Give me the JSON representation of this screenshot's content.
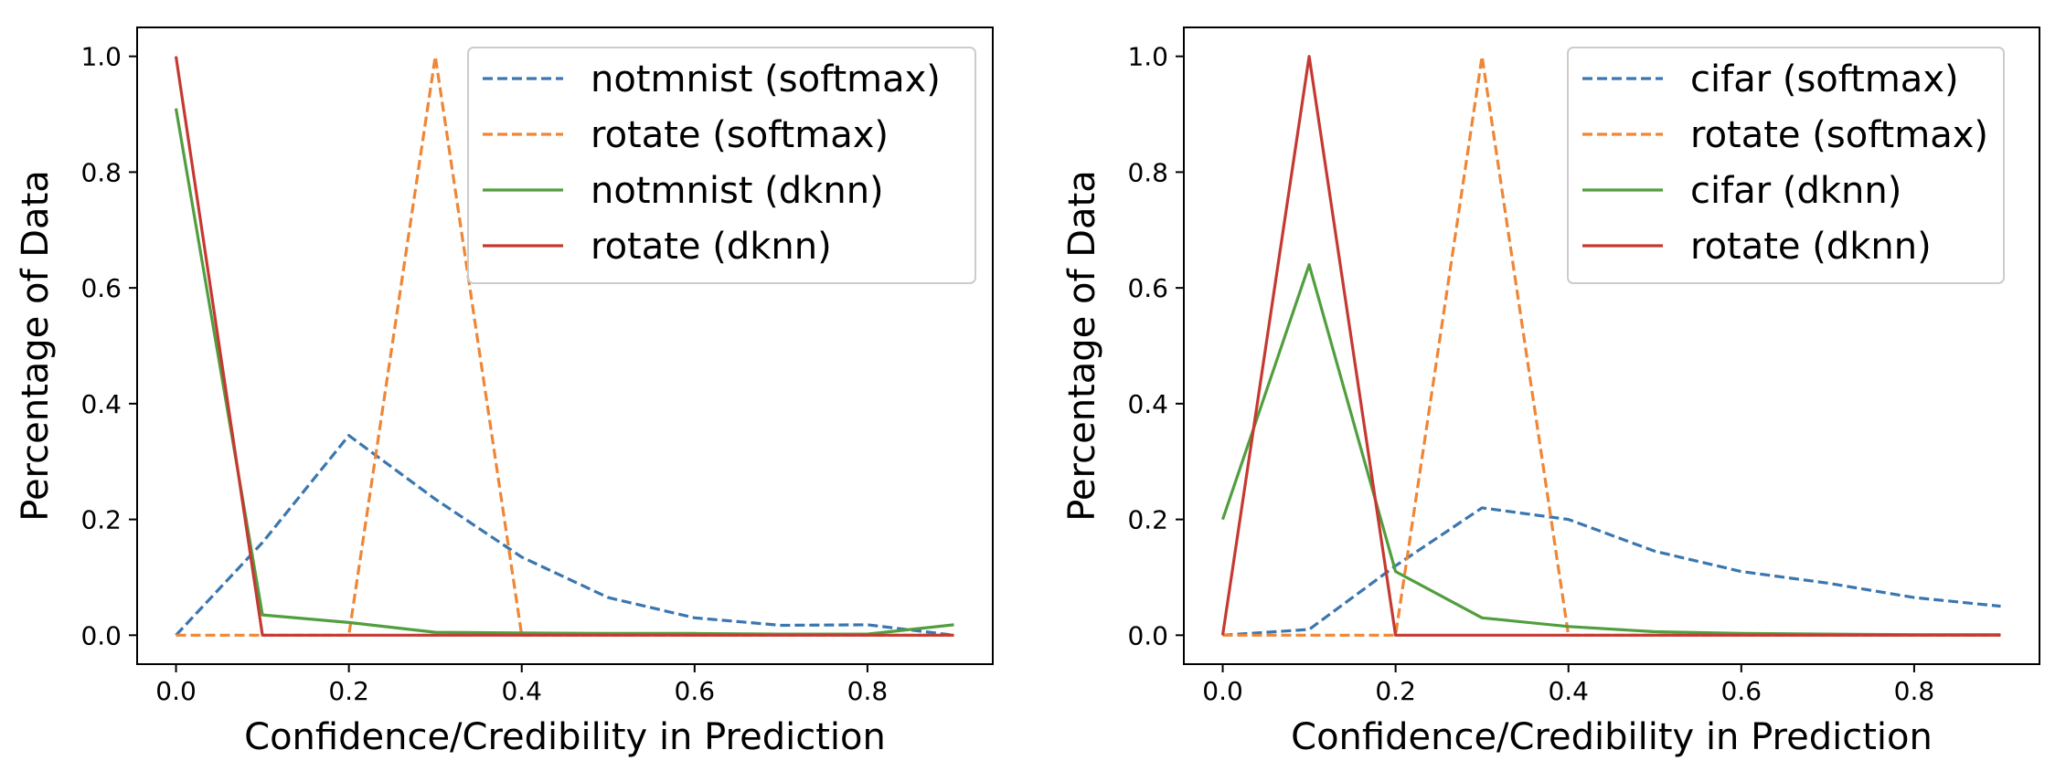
{
  "colors": {
    "blue": "#3a76af",
    "orange": "#ef8636",
    "green": "#519e3e",
    "red": "#c53932"
  },
  "chart_data": [
    {
      "type": "line",
      "title": "",
      "xlabel": "Confidence/Credibility in Prediction",
      "ylabel": "Percentage of Data",
      "xlim": [
        -0.045,
        0.945
      ],
      "ylim": [
        -0.05,
        1.05
      ],
      "xticks": [
        "0.0",
        "0.2",
        "0.4",
        "0.6",
        "0.8"
      ],
      "yticks": [
        "0.0",
        "0.2",
        "0.4",
        "0.6",
        "0.8",
        "1.0"
      ],
      "grid": false,
      "legend_position": "top-right",
      "x": [
        0.0,
        0.1,
        0.2,
        0.3,
        0.4,
        0.5,
        0.6,
        0.7,
        0.8,
        0.9
      ],
      "series": [
        {
          "name": "notmnist (softmax)",
          "color": "#3a76af",
          "style": "dashed",
          "values": [
            0.0,
            0.16,
            0.345,
            0.235,
            0.135,
            0.065,
            0.03,
            0.017,
            0.018,
            0.0
          ]
        },
        {
          "name": "rotate (softmax)",
          "color": "#ef8636",
          "style": "dashed",
          "values": [
            0.0,
            0.0,
            0.0,
            1.0,
            0.0,
            0.0,
            0.0,
            0.0,
            0.0,
            0.0
          ]
        },
        {
          "name": "notmnist (dknn)",
          "color": "#519e3e",
          "style": "solid",
          "values": [
            0.91,
            0.035,
            0.022,
            0.005,
            0.004,
            0.003,
            0.003,
            0.002,
            0.002,
            0.018
          ]
        },
        {
          "name": "rotate (dknn)",
          "color": "#c53932",
          "style": "solid",
          "values": [
            1.0,
            0.0,
            0.0,
            0.0,
            0.0,
            0.0,
            0.0,
            0.0,
            0.0,
            0.0
          ]
        }
      ]
    },
    {
      "type": "line",
      "title": "",
      "xlabel": "Confidence/Credibility in Prediction",
      "ylabel": "Percentage of Data",
      "xlim": [
        -0.045,
        0.945
      ],
      "ylim": [
        -0.05,
        1.05
      ],
      "xticks": [
        "0.0",
        "0.2",
        "0.4",
        "0.6",
        "0.8"
      ],
      "yticks": [
        "0.0",
        "0.2",
        "0.4",
        "0.6",
        "0.8",
        "1.0"
      ],
      "grid": false,
      "legend_position": "top-right",
      "x": [
        0.0,
        0.1,
        0.2,
        0.3,
        0.4,
        0.5,
        0.6,
        0.7,
        0.8,
        0.9
      ],
      "series": [
        {
          "name": "cifar (softmax)",
          "color": "#3a76af",
          "style": "dashed",
          "values": [
            0.0,
            0.01,
            0.12,
            0.22,
            0.2,
            0.145,
            0.11,
            0.09,
            0.065,
            0.05
          ]
        },
        {
          "name": "rotate (softmax)",
          "color": "#ef8636",
          "style": "dashed",
          "values": [
            0.0,
            0.0,
            0.0,
            1.0,
            0.0,
            0.0,
            0.0,
            0.0,
            0.0,
            0.0
          ]
        },
        {
          "name": "cifar (dknn)",
          "color": "#519e3e",
          "style": "solid",
          "values": [
            0.2,
            0.64,
            0.11,
            0.03,
            0.015,
            0.006,
            0.003,
            0.002,
            0.001,
            0.001
          ]
        },
        {
          "name": "rotate (dknn)",
          "color": "#c53932",
          "style": "solid",
          "values": [
            0.0,
            1.0,
            0.0,
            0.0,
            0.0,
            0.0,
            0.0,
            0.0,
            0.0,
            0.0
          ]
        }
      ]
    }
  ]
}
